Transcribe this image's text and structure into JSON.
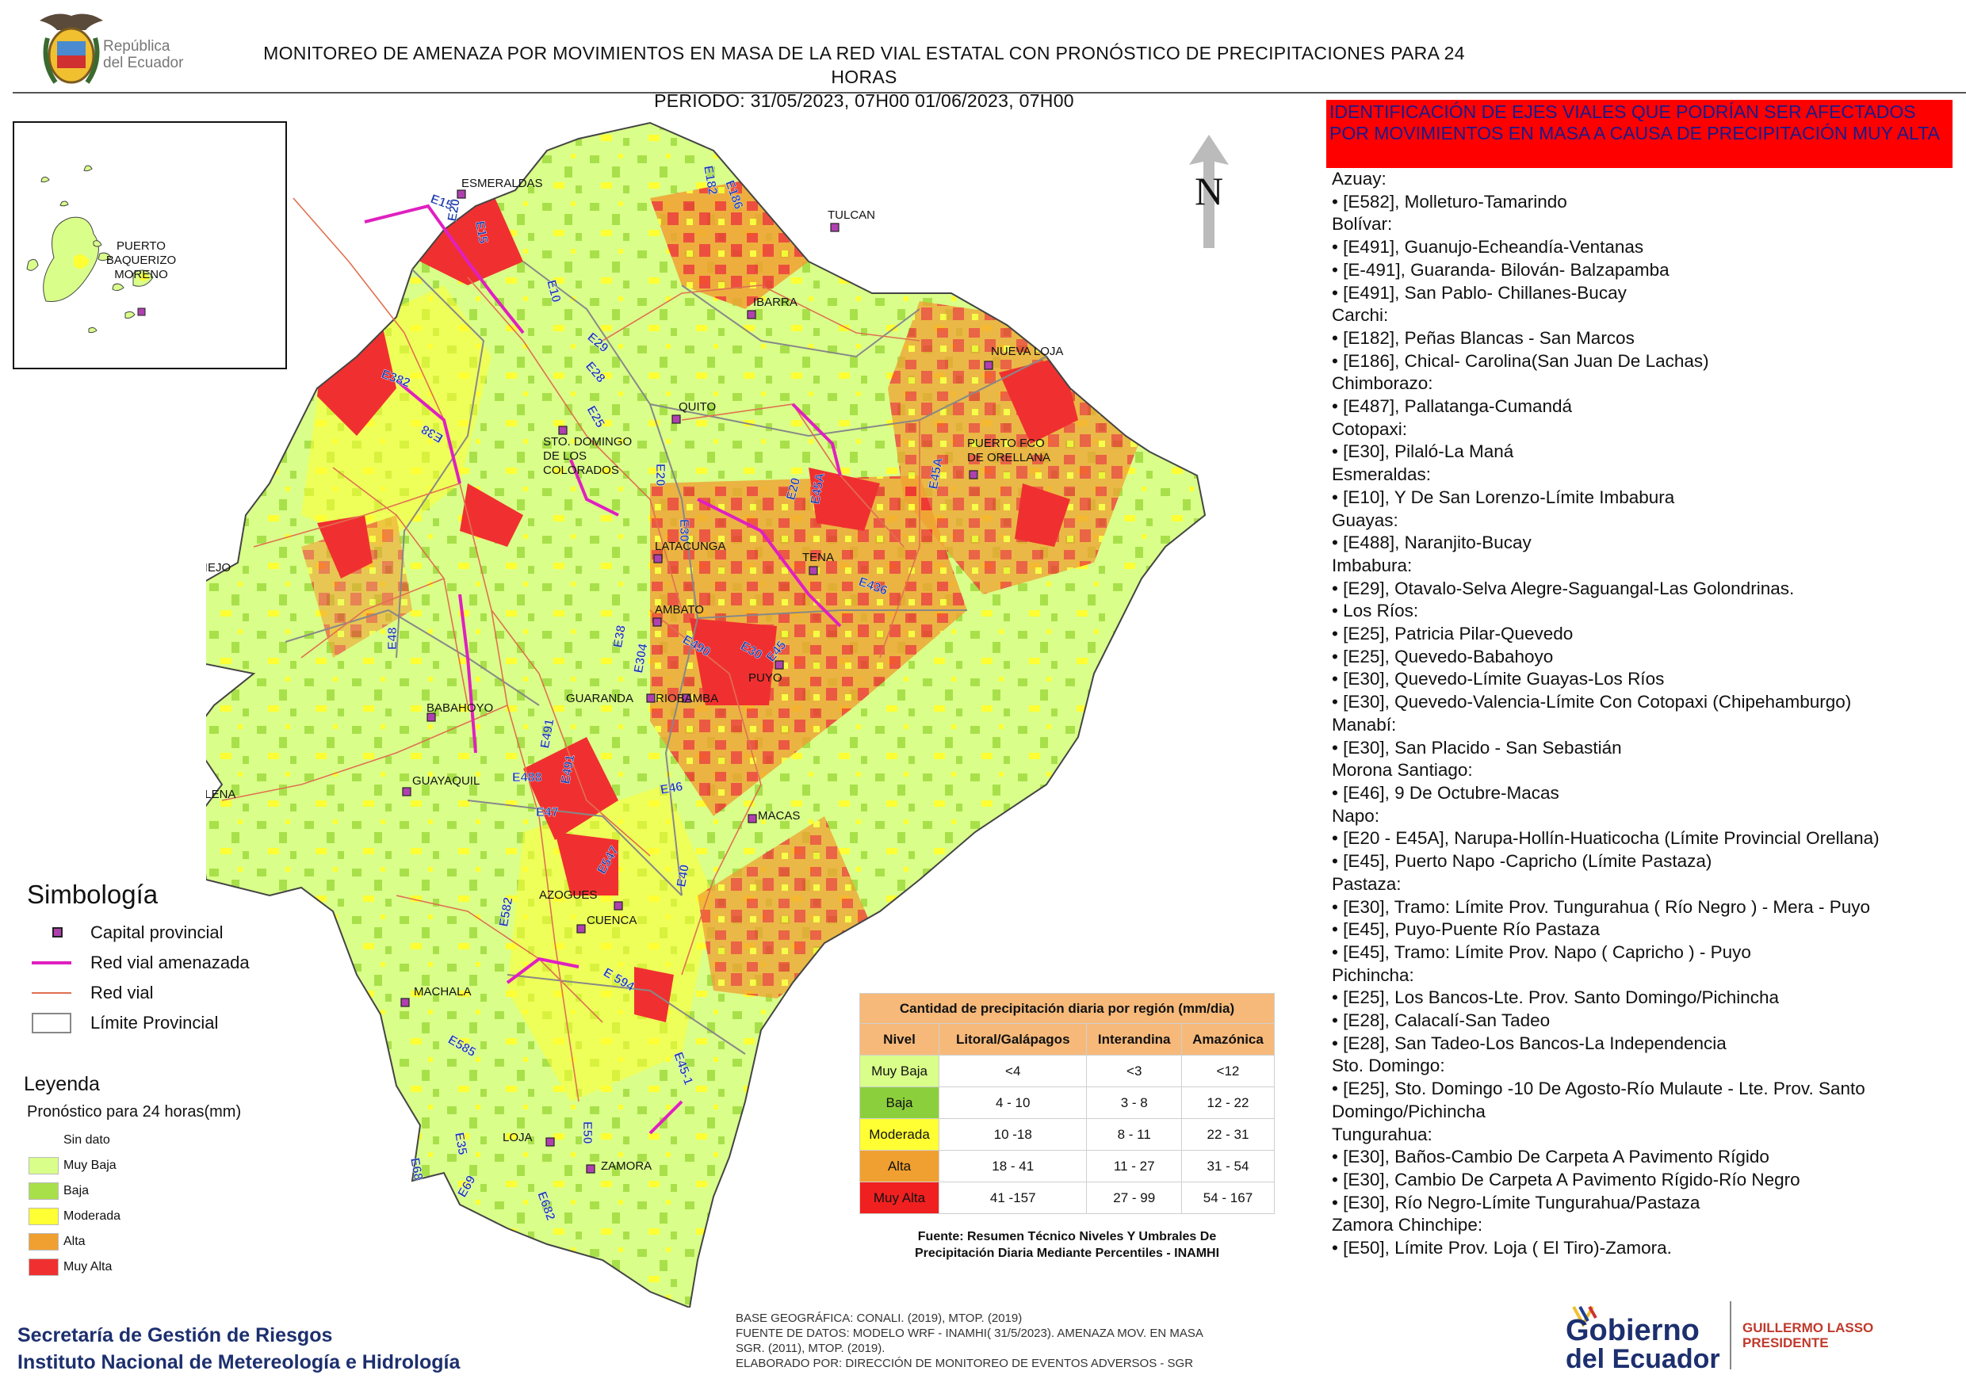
{
  "header": {
    "logo_text_line1": "República",
    "logo_text_line2": "del Ecuador",
    "title_line1": "MONITOREO DE AMENAZA POR MOVIMIENTOS EN MASA DE LA RED VIAL  ESTATAL  CON PRONÓSTICO  DE  PRECIPITACIONES PARA 24 HORAS",
    "title_line2": "PERIODO: 31/05/2023, 07H00 01/06/2023, 07H00"
  },
  "inset": {
    "label_line1": "PUERTO",
    "label_line2": "BAQUERIZO",
    "label_line3": "MORENO"
  },
  "north_label": "N",
  "cities": [
    "ESMERALDAS",
    "TULCAN",
    "IBARRA",
    "NUEVA LOJA",
    "QUITO",
    "STO. DOMINGO",
    "DE LOS",
    "COLORADOS",
    "PUERTO FCO",
    "DE ORELLANA",
    "LATACUNGA",
    "TENA",
    "PORTOVIEJO",
    "AMBATO",
    "PUYO",
    "GUARANDA",
    "RIOBAMBA",
    "BABAHOYO",
    "SANTA ELENA",
    "GUAYAQUIL",
    "MACAS",
    "AZOGUES",
    "CUENCA",
    "MACHALA",
    "LOJA",
    "ZAMORA"
  ],
  "roads": [
    "E15",
    "E20",
    "E15",
    "E182",
    "E186",
    "E10",
    "E29",
    "E28",
    "E382",
    "E25",
    "E38",
    "E20",
    "E30",
    "E20",
    "E45A",
    "E45A",
    "E436",
    "E48",
    "E38",
    "E304",
    "E490",
    "E30",
    "E45",
    "E491",
    "E491",
    "E488",
    "E47",
    "E46",
    "E582",
    "E547",
    "E40",
    "E 594",
    "E585",
    "E45-1",
    "E50",
    "E35",
    "E68",
    "E69",
    "E682"
  ],
  "legend": {
    "symbology_title": "Simbología",
    "capital_label": "Capital provincial",
    "threatened_road_label": "Red vial amenazada",
    "road_label": "Red vial",
    "province_limit_label": "Límite Provincial",
    "leyenda_title": "Leyenda",
    "forecast_title": "Pronóstico para 24 horas(mm)",
    "levels": [
      {
        "label": "Sin dato",
        "color": "#ffffff"
      },
      {
        "label": "Muy Baja",
        "color": "#d9ff8a"
      },
      {
        "label": "Baja",
        "color": "#a8e04a"
      },
      {
        "label": "Moderada",
        "color": "#ffff33"
      },
      {
        "label": "Alta",
        "color": "#f0a030"
      },
      {
        "label": "Muy Alta",
        "color": "#f03030"
      }
    ]
  },
  "precip_table": {
    "title": "Cantidad de precipitación diaria por región (mm/dia)",
    "headers": [
      "Nivel",
      "Litoral/Galápagos",
      "Interandina",
      "Amazónica"
    ],
    "rows": [
      {
        "level": "Muy Baja",
        "color": "#d9ff8a",
        "litoral": "<4",
        "interandina": "<3",
        "amazonica": "<12"
      },
      {
        "level": "Baja",
        "color": "#8ccf3c",
        "litoral": "4 - 10",
        "interandina": "3 - 8",
        "amazonica": "12 - 22"
      },
      {
        "level": "Moderada",
        "color": "#ffff33",
        "litoral": "10 -18",
        "interandina": "8 - 11",
        "amazonica": "22 - 31"
      },
      {
        "level": "Alta",
        "color": "#f0a030",
        "litoral": "18 - 41",
        "interandina": "11 - 27",
        "amazonica": "31 - 54"
      },
      {
        "level": "Muy Alta",
        "color": "#f02020",
        "litoral": "41 -157",
        "interandina": "27 - 99",
        "amazonica": "54 - 167"
      }
    ],
    "source_line1": "Fuente: Resumen Técnico Niveles Y Umbrales De",
    "source_line2": "Precipitación Diaria Mediante Percentiles - INAMHI"
  },
  "right_panel": {
    "alert_title": "IDENTIFICACIÓN DE EJES VIALES QUE PODRÍAN SER AFECTADOS POR MOVIMIENTOS EN MASA A CAUSA DE PRECIPITACIÓN MUY ALTA",
    "items": [
      "Azuay:",
      "• [E582], Molleturo-Tamarindo",
      "Bolívar:",
      "• [E491], Guanujo-Echeandía-Ventanas",
      "• [E-491], Guaranda- Bilován- Balzapamba",
      "• [E491], San Pablo- Chillanes-Bucay",
      "Carchi:",
      "• [E182], Peñas Blancas - San Marcos",
      "• [E186], Chical- Carolina(San Juan De Lachas)",
      "Chimborazo:",
      "• [E487], Pallatanga-Cumandá",
      "Cotopaxi:",
      "• [E30], Pilaló-La Maná",
      "Esmeraldas:",
      "• [E10], Y De San Lorenzo-Límite Imbabura",
      "Guayas:",
      "• [E488], Naranjito-Bucay",
      "Imbabura:",
      "• [E29], Otavalo-Selva Alegre-Saguangal-Las Golondrinas.",
      "• Los Ríos:",
      "• [E25], Patricia Pilar-Quevedo",
      "• [E25], Quevedo-Babahoyo",
      "• [E30], Quevedo-Límite Guayas-Los Ríos",
      "• [E30], Quevedo-Valencia-Límite Con Cotopaxi (Chipehamburgo)",
      "Manabí:",
      "• [E30], San Placido - San Sebastián",
      "Morona Santiago:",
      "• [E46], 9 De Octubre-Macas",
      "Napo:",
      "• [E20 - E45A], Narupa-Hollín-Huaticocha (Límite Provincial Orellana)",
      "• [E45], Puerto Napo -Capricho (Límite Pastaza)",
      "Pastaza:",
      "• [E30], Tramo: Límite Prov. Tungurahua ( Río Negro ) - Mera - Puyo",
      "• [E45], Puyo-Puente Río Pastaza",
      "• [E45], Tramo: Límite Prov. Napo ( Capricho ) - Puyo",
      "Pichincha:",
      "• [E25], Los Bancos-Lte. Prov. Santo Domingo/Pichincha",
      "• [E28], Calacalí-San Tadeo",
      "• [E28], San Tadeo-Los Bancos-La Independencia",
      "Sto. Domingo:",
      "• [E25], Sto. Domingo -10 De Agosto-Río Mulaute - Lte. Prov. Santo Domingo/Pichincha",
      "Tungurahua:",
      "• [E30], Baños-Cambio De Carpeta A Pavimento Rígido",
      "• [E30], Cambio De Carpeta A Pavimento Rígido-Río Negro",
      "• [E30], Río Negro-Límite Tungurahua/Pastaza",
      "Zamora Chinchipe:",
      "• [E50], Límite Prov. Loja ( El Tiro)-Zamora."
    ]
  },
  "footer": {
    "org_line1": "Secretaría de Gestión de Riesgos",
    "org_line2": "Instituto Nacional de Metereología e Hidrología",
    "credits": [
      "BASE GEOGRÁFICA: CONALI. (2019), MTOP. (2019)",
      "FUENTE DE DATOS: MODELO WRF - INAMHI( 31/5/2023).  AMENAZA MOV. EN MASA",
      "SGR. (2011), MTOP. (2019).",
      "ELABORADO POR: DIRECCIÓN DE MONITOREO DE EVENTOS ADVERSOS - SGR"
    ],
    "gov_logo_line1": "Gobierno",
    "gov_logo_line2": "del Ecuador",
    "president_line1": "GUILLERMO LASSO",
    "president_line2": "PRESIDENTE"
  },
  "colors": {
    "muy_baja": "#d9ff8a",
    "baja": "#a8e04a",
    "moderada": "#ffff33",
    "alta": "#f0a030",
    "muy_alta": "#f03030",
    "threatened_road": "#e020c0",
    "road": "#e07050",
    "capital": "#b040b0",
    "alert_bg": "#ff0000"
  }
}
